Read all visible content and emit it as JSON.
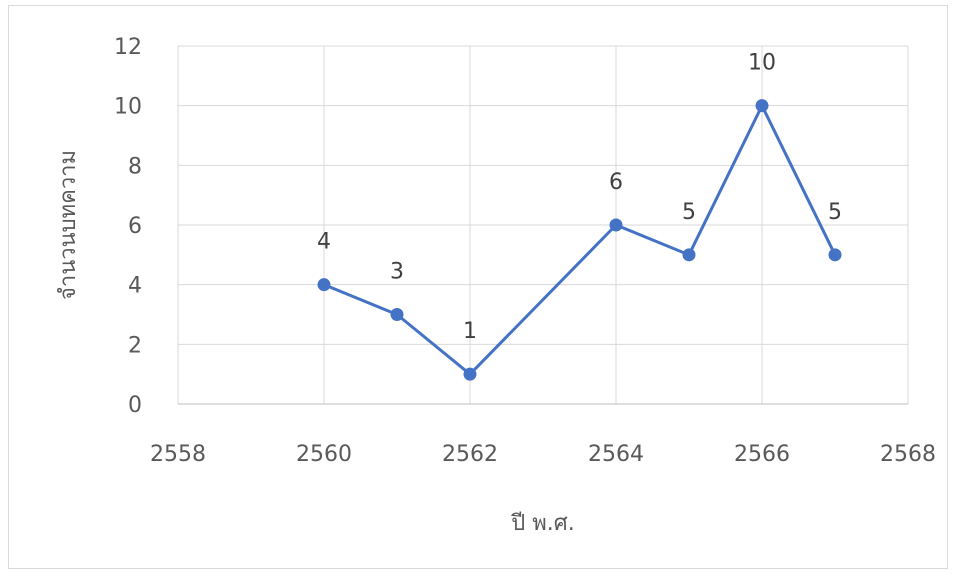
{
  "chart_data": {
    "type": "scatter",
    "mode": "lines+markers",
    "title": "",
    "xlabel": "ปี พ.ศ.",
    "ylabel": "จำนวนบทความ",
    "xlim": [
      2558,
      2568
    ],
    "ylim": [
      0,
      12
    ],
    "xticks": [
      2558,
      2560,
      2562,
      2564,
      2566,
      2568
    ],
    "yticks": [
      0,
      2,
      4,
      6,
      8,
      10,
      12
    ],
    "grid": true,
    "legend": "none",
    "series": [
      {
        "x": [
          2560,
          2561,
          2562,
          2564,
          2565,
          2566,
          2567
        ],
        "y": [
          4,
          3,
          1,
          6,
          5,
          10,
          5
        ],
        "data_labels": [
          "4",
          "3",
          "1",
          "6",
          "5",
          "10",
          "5"
        ],
        "color": "#4472c4"
      }
    ]
  }
}
